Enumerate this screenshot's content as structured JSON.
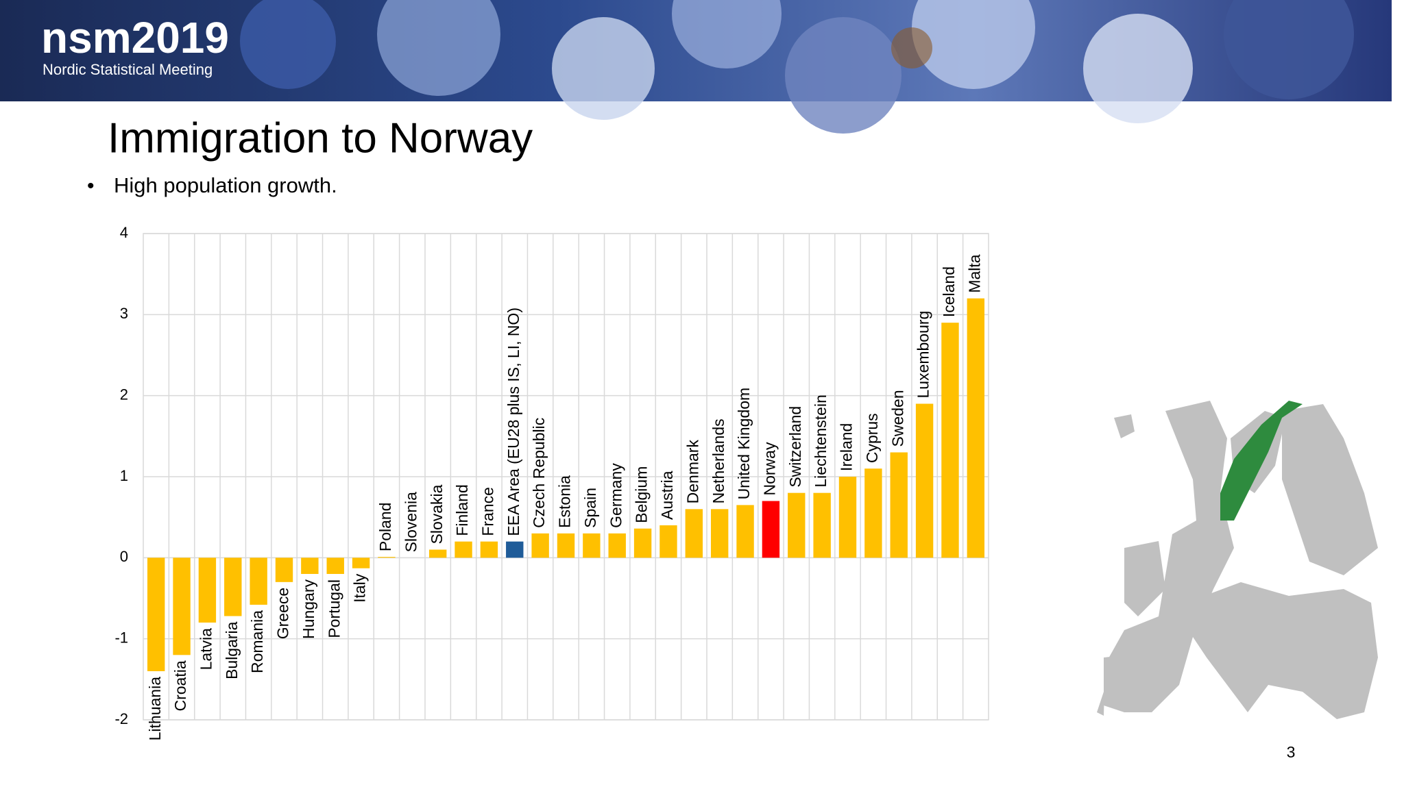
{
  "logo": {
    "mark": "nsm2019",
    "subtitle": "Nordic Statistical Meeting"
  },
  "slide": {
    "title": "Immigration to Norway",
    "bullet": "High population growth.",
    "page_number": "3"
  },
  "chart_data": {
    "type": "bar",
    "categories": [
      "Lithuania",
      "Croatia",
      "Latvia",
      "Bulgaria",
      "Romania",
      "Greece",
      "Hungary",
      "Portugal",
      "Italy",
      "Poland",
      "Slovenia",
      "Slovakia",
      "Finland",
      "France",
      "EEA Area (EU28 plus IS, LI, NO)",
      "Czech Republic",
      "Estonia",
      "Spain",
      "Germany",
      "Belgium",
      "Austria",
      "Denmark",
      "Netherlands",
      "United Kingdom",
      "Norway",
      "Switzerland",
      "Liechtenstein",
      "Ireland",
      "Cyprus",
      "Sweden",
      "Luxembourg",
      "Iceland",
      "Malta"
    ],
    "values": [
      -1.4,
      -1.2,
      -0.8,
      -0.72,
      -0.58,
      -0.3,
      -0.2,
      -0.2,
      -0.13,
      0.01,
      0.0,
      0.1,
      0.2,
      0.2,
      0.2,
      0.3,
      0.3,
      0.3,
      0.3,
      0.36,
      0.4,
      0.6,
      0.6,
      0.65,
      0.7,
      0.8,
      0.8,
      1.0,
      1.1,
      1.3,
      1.9,
      2.9,
      3.2
    ],
    "colors": [
      "#ffc000",
      "#ffc000",
      "#ffc000",
      "#ffc000",
      "#ffc000",
      "#ffc000",
      "#ffc000",
      "#ffc000",
      "#ffc000",
      "#ffc000",
      "#ffc000",
      "#ffc000",
      "#ffc000",
      "#ffc000",
      "#1f5c99",
      "#ffc000",
      "#ffc000",
      "#ffc000",
      "#ffc000",
      "#ffc000",
      "#ffc000",
      "#ffc000",
      "#ffc000",
      "#ffc000",
      "#ff0000",
      "#ffc000",
      "#ffc000",
      "#ffc000",
      "#ffc000",
      "#ffc000",
      "#ffc000",
      "#ffc000",
      "#ffc000"
    ],
    "ylim": [
      -2,
      4
    ],
    "yticks": [
      -2,
      -1,
      0,
      1,
      2,
      3,
      4
    ],
    "grid": true
  }
}
